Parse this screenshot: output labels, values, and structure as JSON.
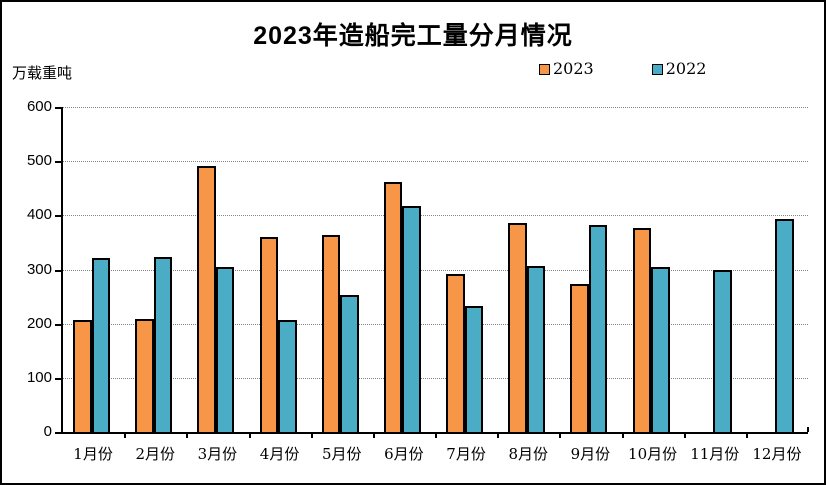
{
  "title": "2023年造船完工量分月情况",
  "unit_label": "万载重吨",
  "legend": [
    {
      "label": "2023",
      "color": "#F79646"
    },
    {
      "label": "2022",
      "color": "#4BACC6"
    }
  ],
  "colors": {
    "series_2023": "#F79646",
    "series_2022": "#4BACC6",
    "bar_border": "#000000",
    "gridline": "#848484",
    "frame": "#000000"
  },
  "chart_data": {
    "type": "bar",
    "title": "2023年造船完工量分月情况",
    "ylabel": "万载重吨",
    "xlabel": "",
    "categories": [
      "1月份",
      "2月份",
      "3月份",
      "4月份",
      "5月份",
      "6月份",
      "7月份",
      "8月份",
      "9月份",
      "10月份",
      "11月份",
      "12月份"
    ],
    "series": [
      {
        "name": "2023",
        "color": "#F79646",
        "values": [
          211,
          212,
          495,
          364,
          368,
          465,
          296,
          389,
          277,
          381,
          null,
          null
        ]
      },
      {
        "name": "2022",
        "color": "#4BACC6",
        "values": [
          325,
          327,
          308,
          210,
          256,
          421,
          236,
          310,
          386,
          309,
          303,
          397
        ]
      }
    ],
    "ylim": [
      0,
      600
    ],
    "ytick_interval": 100,
    "yticks": [
      0,
      100,
      200,
      300,
      400,
      500,
      600
    ],
    "grid": "horizontal-dotted",
    "legend_position": "top-right"
  }
}
